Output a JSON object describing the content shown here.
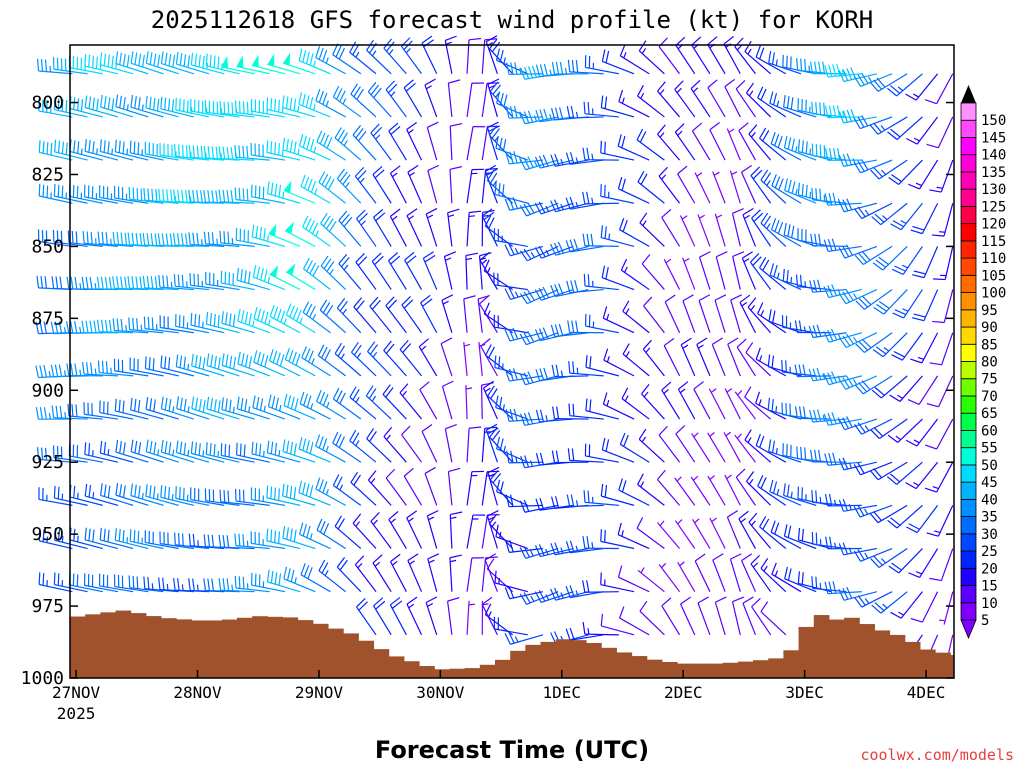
{
  "chart_data": {
    "type": "wind-barb-timeheight",
    "title": "2025112618 GFS forecast wind profile (kt) for KORH",
    "xlabel": "Forecast Time (UTC)",
    "ylabel": "",
    "watermark": "coolwx.com/models",
    "units": "kt",
    "x_ticks": [
      {
        "label": "27NOV",
        "sub": "2025",
        "day": 0
      },
      {
        "label": "28NOV",
        "sub": "",
        "day": 1
      },
      {
        "label": "29NOV",
        "sub": "",
        "day": 2
      },
      {
        "label": "30NOV",
        "sub": "",
        "day": 3
      },
      {
        "label": "1DEC",
        "sub": "",
        "day": 4
      },
      {
        "label": "2DEC",
        "sub": "",
        "day": 5
      },
      {
        "label": "3DEC",
        "sub": "",
        "day": 6
      },
      {
        "label": "4DEC",
        "sub": "",
        "day": 7
      }
    ],
    "x_range_days": [
      -0.05,
      7.23
    ],
    "y_ticks": [
      800,
      825,
      850,
      875,
      900,
      925,
      950,
      975,
      1000
    ],
    "y_range_hpa": [
      1000,
      780
    ],
    "pressure_levels": [
      790,
      805,
      820,
      835,
      850,
      865,
      880,
      895,
      910,
      925,
      940,
      955,
      970,
      985
    ],
    "time_step_hours": 3,
    "colorbar": {
      "levels": [
        5,
        10,
        15,
        20,
        25,
        30,
        35,
        40,
        45,
        50,
        55,
        60,
        65,
        70,
        75,
        80,
        85,
        90,
        95,
        100,
        105,
        110,
        115,
        120,
        125,
        130,
        135,
        140,
        145,
        150
      ],
      "colors": [
        "#8000ff",
        "#5a00ff",
        "#1e00ff",
        "#0024ff",
        "#0048ff",
        "#006cff",
        "#0090ff",
        "#00b4ff",
        "#00dcff",
        "#00ffd8",
        "#00ff90",
        "#00ff48",
        "#28ff00",
        "#70ff00",
        "#b8ff00",
        "#ffff00",
        "#ffd800",
        "#ffb400",
        "#ff9000",
        "#ff6c00",
        "#ff4800",
        "#ff2400",
        "#ff0000",
        "#ff0048",
        "#ff0090",
        "#ff00b4",
        "#ff00d8",
        "#ff00ff",
        "#ff48ff",
        "#ff90ff"
      ]
    },
    "wind_control_points": [
      {
        "day": -0.05,
        "speed_kt": 32,
        "dir_deg": 275
      },
      {
        "day": 0.6,
        "speed_kt": 35,
        "dir_deg": 280
      },
      {
        "day": 1.5,
        "speed_kt": 38,
        "dir_deg": 280
      },
      {
        "day": 2.0,
        "speed_kt": 45,
        "dir_deg": 295
      },
      {
        "day": 2.4,
        "speed_kt": 25,
        "dir_deg": 315
      },
      {
        "day": 2.9,
        "speed_kt": 15,
        "dir_deg": 330
      },
      {
        "day": 3.3,
        "speed_kt": 10,
        "dir_deg": 10
      },
      {
        "day": 3.9,
        "speed_kt": 30,
        "dir_deg": 250
      },
      {
        "day": 4.4,
        "speed_kt": 25,
        "dir_deg": 270
      },
      {
        "day": 5.0,
        "speed_kt": 10,
        "dir_deg": 330
      },
      {
        "day": 5.5,
        "speed_kt": 8,
        "dir_deg": 340
      },
      {
        "day": 6.0,
        "speed_kt": 25,
        "dir_deg": 290
      },
      {
        "day": 6.5,
        "speed_kt": 35,
        "dir_deg": 260
      },
      {
        "day": 7.23,
        "speed_kt": 12,
        "dir_deg": 200
      }
    ],
    "terrain_surface_pressure": [
      {
        "day": -0.05,
        "hpa": 979
      },
      {
        "day": 0.2,
        "hpa": 977.5
      },
      {
        "day": 0.4,
        "hpa": 976.5
      },
      {
        "day": 0.7,
        "hpa": 979
      },
      {
        "day": 1.0,
        "hpa": 980
      },
      {
        "day": 1.2,
        "hpa": 980
      },
      {
        "day": 1.5,
        "hpa": 978.5
      },
      {
        "day": 1.8,
        "hpa": 979
      },
      {
        "day": 2.0,
        "hpa": 981
      },
      {
        "day": 2.3,
        "hpa": 985
      },
      {
        "day": 2.6,
        "hpa": 992
      },
      {
        "day": 2.9,
        "hpa": 996
      },
      {
        "day": 3.0,
        "hpa": 997
      },
      {
        "day": 3.3,
        "hpa": 996.5
      },
      {
        "day": 3.5,
        "hpa": 994
      },
      {
        "day": 3.7,
        "hpa": 989
      },
      {
        "day": 4.0,
        "hpa": 986.5
      },
      {
        "day": 4.2,
        "hpa": 987
      },
      {
        "day": 4.5,
        "hpa": 991
      },
      {
        "day": 4.8,
        "hpa": 994
      },
      {
        "day": 5.0,
        "hpa": 995
      },
      {
        "day": 5.3,
        "hpa": 995
      },
      {
        "day": 5.6,
        "hpa": 994
      },
      {
        "day": 5.8,
        "hpa": 993
      },
      {
        "day": 5.9,
        "hpa": 990
      },
      {
        "day": 6.0,
        "hpa": 983
      },
      {
        "day": 6.1,
        "hpa": 977
      },
      {
        "day": 6.2,
        "hpa": 980
      },
      {
        "day": 6.4,
        "hpa": 979
      },
      {
        "day": 6.6,
        "hpa": 983
      },
      {
        "day": 6.8,
        "hpa": 985.5
      },
      {
        "day": 7.0,
        "hpa": 990
      },
      {
        "day": 7.23,
        "hpa": 992
      }
    ],
    "colors": {
      "terrain": "#a0522d",
      "axis": "#000000",
      "watermark": "#e63d3d",
      "background": "#ffffff"
    }
  }
}
